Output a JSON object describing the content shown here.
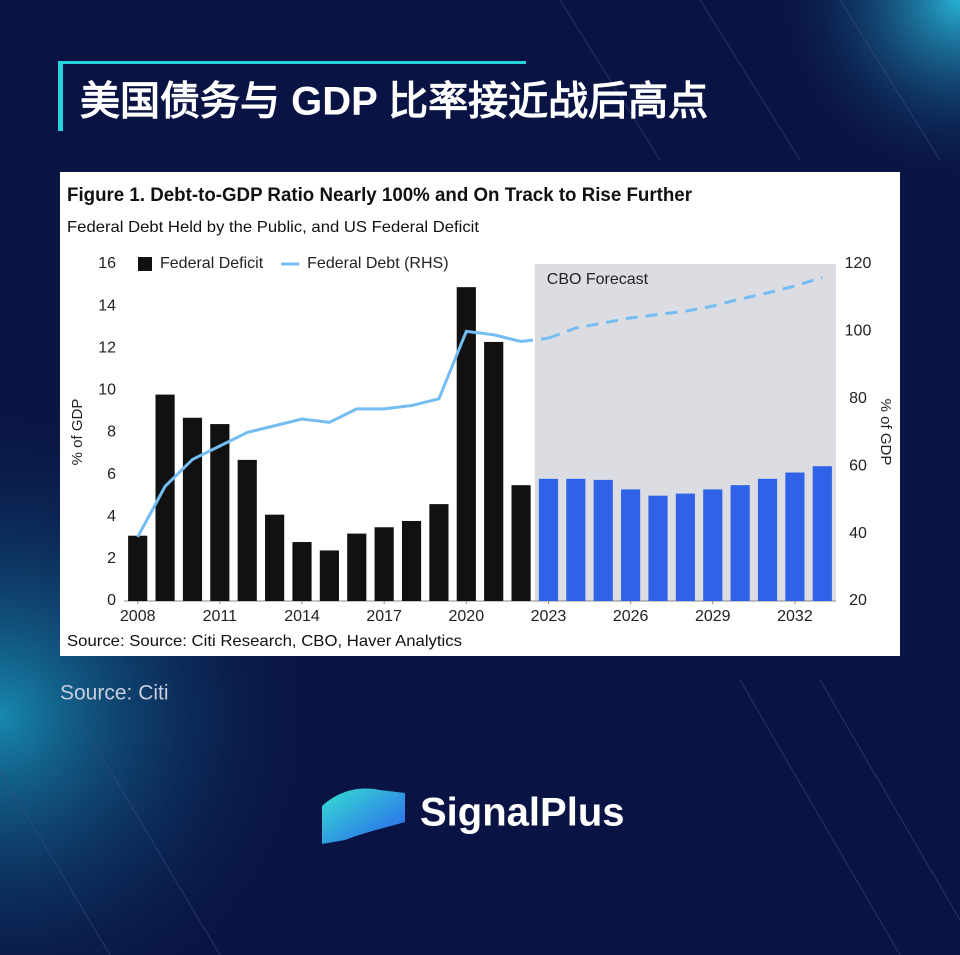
{
  "title": "美国债务与 GDP 比率接近战后高点",
  "chart_data": {
    "type": "bar",
    "title": "Figure 1. Debt-to-GDP Ratio Nearly 100% and On Track to Rise Further",
    "subtitle": "Federal Debt Held by the Public, and US Federal Deficit",
    "source": "Source: Source: Citi Research, CBO, Haver Analytics",
    "y_label": "% of GDP",
    "y2_label": "% of GDP",
    "x": [
      2008,
      2009,
      2010,
      2011,
      2012,
      2013,
      2014,
      2015,
      2016,
      2017,
      2018,
      2019,
      2020,
      2021,
      2022,
      2023,
      2024,
      2025,
      2026,
      2027,
      2028,
      2029,
      2030,
      2031,
      2032,
      2033
    ],
    "xlim": [
      2007.5,
      2033.5
    ],
    "xticks": [
      2008,
      2011,
      2014,
      2017,
      2020,
      2023,
      2026,
      2029,
      2032
    ],
    "ylim": [
      0,
      16
    ],
    "yticks": [
      0,
      2,
      4,
      6,
      8,
      10,
      12,
      14,
      16
    ],
    "y2lim": [
      20,
      120
    ],
    "y2ticks": [
      20,
      40,
      60,
      80,
      100,
      120
    ],
    "shaded_region": {
      "label": "CBO Forecast",
      "xlim": [
        2022.5,
        2033.5
      ],
      "color": "#dcdde2"
    },
    "series": [
      {
        "name": "Federal Deficit",
        "type": "bar",
        "color": "#111111",
        "forecast_color": "#2f62e6",
        "values": [
          3.1,
          9.8,
          8.7,
          8.4,
          6.7,
          4.1,
          2.8,
          2.4,
          3.2,
          3.5,
          3.8,
          4.6,
          14.9,
          12.3,
          5.5,
          5.8,
          5.8,
          5.75,
          5.3,
          5.0,
          5.1,
          5.3,
          5.5,
          5.8,
          6.1,
          6.4
        ]
      },
      {
        "name": "Federal Debt (RHS)",
        "type": "line",
        "axis": "y2",
        "color": "#74bdf2",
        "values": [
          39,
          54,
          62,
          66,
          70,
          72,
          74,
          73,
          77,
          77,
          78,
          80,
          100,
          99,
          97,
          98,
          101,
          102.5,
          104,
          105,
          106,
          107.5,
          109.6,
          111.4,
          113.5,
          116
        ]
      }
    ]
  },
  "caption": "Source: Citi",
  "brand": "SignalPlus"
}
